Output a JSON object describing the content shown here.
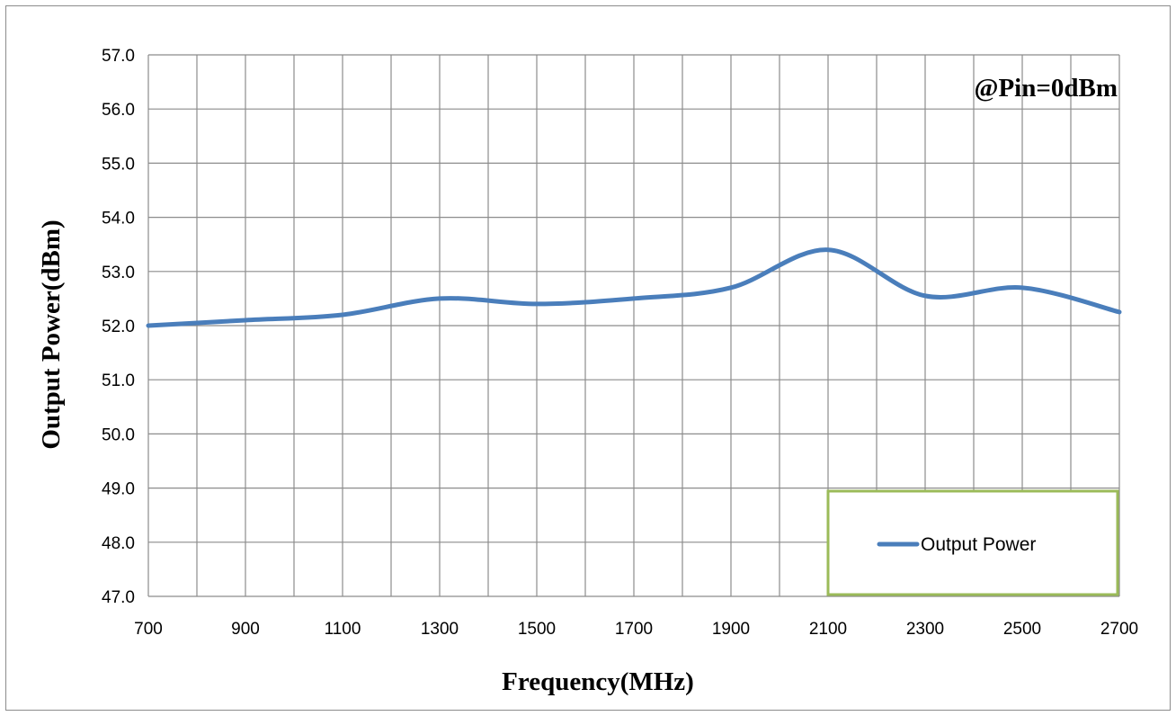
{
  "chart_data": {
    "type": "line",
    "xlabel": "Frequency(MHz)",
    "ylabel": "Output Power(dBm)",
    "annotation": "@Pin=0dBm",
    "xlim": [
      700,
      2700
    ],
    "ylim": [
      47.0,
      57.0
    ],
    "x_ticks": [
      "700",
      "900",
      "1100",
      "1300",
      "1500",
      "1700",
      "1900",
      "2100",
      "2300",
      "2500",
      "2700"
    ],
    "y_ticks": [
      "47.0",
      "48.0",
      "49.0",
      "50.0",
      "51.0",
      "52.0",
      "53.0",
      "54.0",
      "55.0",
      "56.0",
      "57.0"
    ],
    "grid": true,
    "legend_position": "bottom-right",
    "series": [
      {
        "name": "Output Power",
        "color": "#4a7ebb",
        "x": [
          700,
          900,
          1100,
          1300,
          1500,
          1700,
          1900,
          2100,
          2300,
          2500,
          2700
        ],
        "y": [
          52.0,
          52.1,
          52.2,
          52.5,
          52.4,
          52.5,
          52.7,
          53.4,
          52.55,
          52.7,
          52.25
        ]
      }
    ]
  },
  "colors": {
    "grid": "#8c8c8c",
    "legend_border": "#9bbb59",
    "frame": "#8c8c8c"
  }
}
